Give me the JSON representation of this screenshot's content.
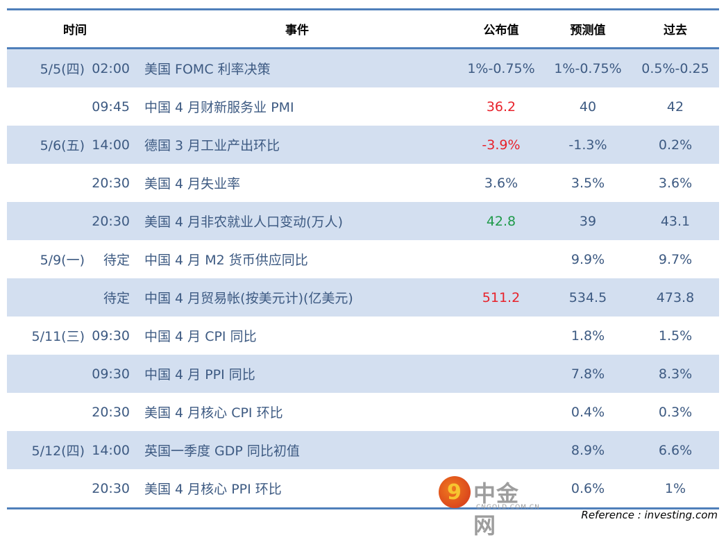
{
  "header": {
    "time": "时间",
    "event": "事件",
    "published": "公布值",
    "forecast": "预测值",
    "previous": "过去"
  },
  "rows": [
    {
      "date": "5/5(四)",
      "time": "02:00",
      "event": "美国 FOMC 利率决策",
      "published": "1%-0.75%",
      "forecast": "1%-0.75%",
      "previous": "0.5%-0.25",
      "pub_color": ""
    },
    {
      "date": "",
      "time": "09:45",
      "event": "中国 4 月财新服务业 PMI",
      "published": "36.2",
      "forecast": "40",
      "previous": "42",
      "pub_color": "red"
    },
    {
      "date": "5/6(五)",
      "time": "14:00",
      "event": "德国 3 月工业产出环比",
      "published": "-3.9%",
      "forecast": "-1.3%",
      "previous": "0.2%",
      "pub_color": "red"
    },
    {
      "date": "",
      "time": "20:30",
      "event": "美国 4 月失业率",
      "published": "3.6%",
      "forecast": "3.5%",
      "previous": "3.6%",
      "pub_color": ""
    },
    {
      "date": "",
      "time": "20:30",
      "event": "美国 4 月非农就业人口变动(万人)",
      "published": "42.8",
      "forecast": "39",
      "previous": "43.1",
      "pub_color": "green"
    },
    {
      "date": "5/9(一)",
      "time": "待定",
      "event": "中国 4 月 M2 货币供应同比",
      "published": "",
      "forecast": "9.9%",
      "previous": "9.7%",
      "pub_color": ""
    },
    {
      "date": "",
      "time": "待定",
      "event": "中国 4 月贸易帐(按美元计)(亿美元)",
      "published": "511.2",
      "forecast": "534.5",
      "previous": "473.8",
      "pub_color": "red"
    },
    {
      "date": "5/11(三)",
      "time": "09:30",
      "event": "中国 4 月 CPI 同比",
      "published": "",
      "forecast": "1.8%",
      "previous": "1.5%",
      "pub_color": ""
    },
    {
      "date": "",
      "time": "09:30",
      "event": "中国 4 月 PPI 同比",
      "published": "",
      "forecast": "7.8%",
      "previous": "8.3%",
      "pub_color": ""
    },
    {
      "date": "",
      "time": "20:30",
      "event": "美国 4 月核心 CPI 环比",
      "published": "",
      "forecast": "0.4%",
      "previous": "0.3%",
      "pub_color": ""
    },
    {
      "date": "5/12(四)",
      "time": "14:00",
      "event": "英国一季度 GDP 同比初值",
      "published": "",
      "forecast": "8.9%",
      "previous": "6.6%",
      "pub_color": ""
    },
    {
      "date": "",
      "time": "20:30",
      "event": "美国 4 月核心 PPI 环比",
      "published": "",
      "forecast": "0.6%",
      "previous": "1%",
      "pub_color": ""
    }
  ],
  "watermark": {
    "name": "中金网",
    "domain": "CNGOLD.COM.CN"
  },
  "reference": "Reference : investing.com",
  "colors": {
    "rule": "#4f7fba",
    "band": "#d3dff0",
    "text": "#3d5a82",
    "up": "#e8212a",
    "down": "#1f9a4a"
  }
}
